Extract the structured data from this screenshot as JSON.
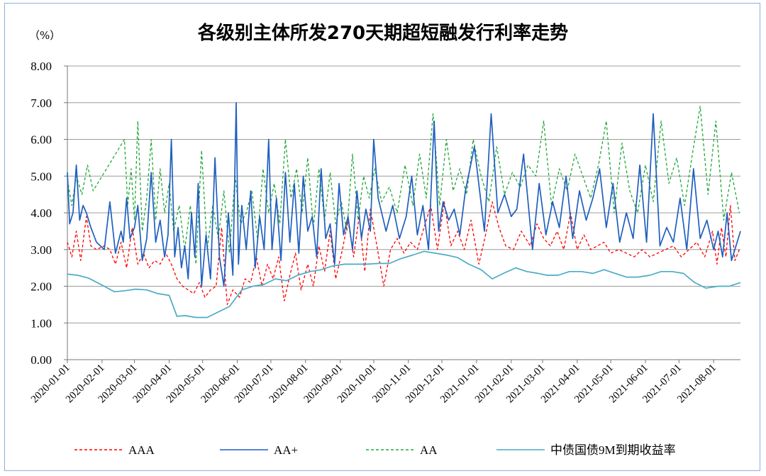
{
  "chart_data": {
    "type": "line",
    "title": "各级别主体所发270天期超短融发行利率走势",
    "unit_label": "（%）",
    "xlabel": "",
    "ylabel": "",
    "ylim": [
      0,
      8
    ],
    "yticks": [
      "0.00",
      "1.00",
      "2.00",
      "3.00",
      "4.00",
      "5.00",
      "6.00",
      "7.00",
      "8.00"
    ],
    "xlim": [
      "2020-01-01",
      "2021-08-25"
    ],
    "xticks": [
      "2020-01-01",
      "2020-02-01",
      "2020-03-01",
      "2020-04-01",
      "2020-05-01",
      "2020-06-01",
      "2020-07-01",
      "2020-08-01",
      "2020-09-01",
      "2020-10-01",
      "2020-11-01",
      "2020-12-01",
      "2021-01-01",
      "2021-02-01",
      "2021-03-01",
      "2021-04-01",
      "2021-05-01",
      "2021-06-01",
      "2021-07-01",
      "2021-08-01"
    ],
    "grid": "horizontal",
    "legend_position": "bottom",
    "series": [
      {
        "name": "AAA",
        "color": "#ff0000",
        "style": "dashed",
        "x": [
          "2020-01-01",
          "2020-01-05",
          "2020-01-09",
          "2020-01-13",
          "2020-01-18",
          "2020-01-22",
          "2020-01-27",
          "2020-02-03",
          "2020-02-08",
          "2020-02-13",
          "2020-02-18",
          "2020-02-23",
          "2020-02-28",
          "2020-03-04",
          "2020-03-09",
          "2020-03-14",
          "2020-03-19",
          "2020-03-24",
          "2020-03-29",
          "2020-04-03",
          "2020-04-08",
          "2020-04-13",
          "2020-04-18",
          "2020-04-23",
          "2020-04-28",
          "2020-05-03",
          "2020-05-08",
          "2020-05-13",
          "2020-05-18",
          "2020-05-23",
          "2020-05-28",
          "2020-06-03",
          "2020-06-08",
          "2020-06-13",
          "2020-06-18",
          "2020-06-23",
          "2020-06-28",
          "2020-07-03",
          "2020-07-08",
          "2020-07-13",
          "2020-07-18",
          "2020-07-23",
          "2020-07-28",
          "2020-08-03",
          "2020-08-08",
          "2020-08-13",
          "2020-08-18",
          "2020-08-23",
          "2020-08-28",
          "2020-09-03",
          "2020-09-08",
          "2020-09-13",
          "2020-09-18",
          "2020-09-23",
          "2020-09-28",
          "2020-10-05",
          "2020-10-10",
          "2020-10-16",
          "2020-10-22",
          "2020-10-28",
          "2020-11-03",
          "2020-11-09",
          "2020-11-15",
          "2020-11-21",
          "2020-11-27",
          "2020-12-03",
          "2020-12-09",
          "2020-12-15",
          "2020-12-21",
          "2020-12-27",
          "2021-01-03",
          "2021-01-09",
          "2021-01-15",
          "2021-01-21",
          "2021-01-27",
          "2021-02-03",
          "2021-02-10",
          "2021-02-18",
          "2021-02-24",
          "2021-03-02",
          "2021-03-08",
          "2021-03-14",
          "2021-03-20",
          "2021-03-26",
          "2021-04-01",
          "2021-04-07",
          "2021-04-13",
          "2021-04-19",
          "2021-04-25",
          "2021-05-01",
          "2021-05-08",
          "2021-05-15",
          "2021-05-22",
          "2021-05-29",
          "2021-06-05",
          "2021-06-12",
          "2021-06-19",
          "2021-06-26",
          "2021-07-03",
          "2021-07-10",
          "2021-07-17",
          "2021-07-24",
          "2021-07-31",
          "2021-08-04",
          "2021-08-08",
          "2021-08-12",
          "2021-08-16",
          "2021-08-20",
          "2021-08-24"
        ],
        "values": [
          3.2,
          2.8,
          3.5,
          2.7,
          3.9,
          3.1,
          3.0,
          3.1,
          3.0,
          2.6,
          3.2,
          2.5,
          3.6,
          2.6,
          2.9,
          2.5,
          2.7,
          2.6,
          2.9,
          2.6,
          2.2,
          2.0,
          1.9,
          1.8,
          2.1,
          1.7,
          1.9,
          2.0,
          3.6,
          1.5,
          1.9,
          1.7,
          2.2,
          2.1,
          2.8,
          2.0,
          2.6,
          2.2,
          2.8,
          1.6,
          2.3,
          2.9,
          1.9,
          2.6,
          2.0,
          3.1,
          2.4,
          3.5,
          2.2,
          3.0,
          3.8,
          2.8,
          3.9,
          2.4,
          4.1,
          2.9,
          2.0,
          3.0,
          3.3,
          2.9,
          3.2,
          3.0,
          3.6,
          4.2,
          3.0,
          4.3,
          3.1,
          3.5,
          3.0,
          3.8,
          2.6,
          3.4,
          4.3,
          3.6,
          3.1,
          3.0,
          3.5,
          3.1,
          3.7,
          3.3,
          3.1,
          3.5,
          3.0,
          4.0,
          3.0,
          3.4,
          3.0,
          3.1,
          3.2,
          2.9,
          3.0,
          2.9,
          2.8,
          3.0,
          2.8,
          2.9,
          3.0,
          3.1,
          2.8,
          3.0,
          3.2,
          2.8,
          3.5,
          2.6,
          3.6,
          2.8,
          4.2,
          2.7,
          3.0
        ]
      },
      {
        "name": "AA+",
        "color": "#1f5fbf",
        "style": "solid",
        "x": [
          "2020-01-01",
          "2020-01-03",
          "2020-01-06",
          "2020-01-09",
          "2020-01-12",
          "2020-01-15",
          "2020-01-18",
          "2020-01-22",
          "2020-01-27",
          "2020-02-03",
          "2020-02-08",
          "2020-02-13",
          "2020-02-18",
          "2020-02-20",
          "2020-02-23",
          "2020-02-26",
          "2020-03-01",
          "2020-03-04",
          "2020-03-08",
          "2020-03-12",
          "2020-03-16",
          "2020-03-20",
          "2020-03-24",
          "2020-03-28",
          "2020-03-31",
          "2020-04-03",
          "2020-04-06",
          "2020-04-09",
          "2020-04-12",
          "2020-04-15",
          "2020-04-18",
          "2020-04-21",
          "2020-04-24",
          "2020-04-27",
          "2020-04-30",
          "2020-05-04",
          "2020-05-08",
          "2020-05-12",
          "2020-05-16",
          "2020-05-20",
          "2020-05-24",
          "2020-05-28",
          "2020-05-31",
          "2020-06-02",
          "2020-06-05",
          "2020-06-09",
          "2020-06-13",
          "2020-06-17",
          "2020-06-21",
          "2020-06-25",
          "2020-06-29",
          "2020-07-02",
          "2020-07-06",
          "2020-07-10",
          "2020-07-14",
          "2020-07-18",
          "2020-07-22",
          "2020-07-26",
          "2020-07-30",
          "2020-08-03",
          "2020-08-07",
          "2020-08-11",
          "2020-08-15",
          "2020-08-19",
          "2020-08-23",
          "2020-08-27",
          "2020-08-31",
          "2020-09-04",
          "2020-09-08",
          "2020-09-12",
          "2020-09-16",
          "2020-09-20",
          "2020-09-24",
          "2020-09-28",
          "2020-10-01",
          "2020-10-05",
          "2020-10-12",
          "2020-10-18",
          "2020-10-24",
          "2020-10-30",
          "2020-11-04",
          "2020-11-09",
          "2020-11-14",
          "2020-11-19",
          "2020-11-24",
          "2020-11-28",
          "2020-12-02",
          "2020-12-07",
          "2020-12-12",
          "2020-12-17",
          "2020-12-22",
          "2020-12-30",
          "2021-01-08",
          "2021-01-14",
          "2021-01-20",
          "2021-01-26",
          "2021-02-01",
          "2021-02-06",
          "2021-02-12",
          "2021-02-20",
          "2021-02-26",
          "2021-03-04",
          "2021-03-10",
          "2021-03-16",
          "2021-03-22",
          "2021-03-28",
          "2021-04-03",
          "2021-04-09",
          "2021-04-15",
          "2021-04-21",
          "2021-04-27",
          "2021-05-03",
          "2021-05-09",
          "2021-05-15",
          "2021-05-21",
          "2021-05-27",
          "2021-06-02",
          "2021-06-08",
          "2021-06-14",
          "2021-06-20",
          "2021-06-26",
          "2021-07-02",
          "2021-07-08",
          "2021-07-14",
          "2021-07-20",
          "2021-07-26",
          "2021-08-01",
          "2021-08-05",
          "2021-08-09",
          "2021-08-13",
          "2021-08-17",
          "2021-08-21",
          "2021-08-25"
        ],
        "values": [
          5.1,
          3.7,
          4.0,
          5.3,
          3.8,
          4.2,
          4.0,
          3.6,
          3.2,
          3.0,
          4.3,
          2.9,
          3.5,
          3.2,
          4.4,
          3.3,
          3.6,
          4.2,
          2.7,
          3.3,
          5.1,
          3.2,
          3.8,
          2.8,
          3.4,
          6.0,
          2.8,
          3.6,
          2.5,
          3.1,
          2.2,
          4.0,
          2.8,
          4.8,
          2.0,
          3.4,
          2.2,
          5.5,
          2.8,
          2.0,
          4.0,
          2.3,
          7.0,
          2.6,
          4.2,
          3.0,
          4.6,
          2.5,
          3.9,
          3.0,
          6.0,
          3.0,
          4.4,
          2.7,
          5.1,
          3.2,
          4.8,
          2.9,
          5.0,
          3.5,
          3.9,
          2.8,
          5.2,
          3.3,
          3.7,
          2.6,
          4.8,
          3.4,
          3.9,
          3.0,
          4.6,
          3.3,
          4.1,
          3.5,
          6.0,
          4.4,
          3.5,
          4.2,
          3.3,
          3.9,
          5.0,
          3.4,
          4.2,
          3.0,
          6.5,
          3.5,
          4.3,
          3.8,
          4.1,
          3.4,
          4.6,
          5.8,
          3.5,
          6.7,
          4.0,
          4.5,
          3.9,
          4.1,
          5.6,
          3.0,
          4.8,
          3.4,
          4.3,
          3.6,
          5.0,
          3.3,
          4.6,
          3.8,
          4.4,
          5.2,
          3.6,
          4.8,
          3.2,
          4.0,
          3.3,
          5.3,
          3.2,
          6.7,
          3.1,
          3.6,
          3.2,
          4.4,
          3.0,
          5.2,
          3.3,
          3.8,
          3.0,
          3.5,
          2.8,
          4.0,
          2.7,
          3.1,
          3.5
        ]
      },
      {
        "name": "AA",
        "color": "#22a83a",
        "style": "dashed",
        "x": [
          "2020-01-01",
          "2020-01-05",
          "2020-01-09",
          "2020-01-14",
          "2020-01-19",
          "2020-01-24",
          "2020-02-21",
          "2020-02-24",
          "2020-02-27",
          "2020-03-01",
          "2020-03-04",
          "2020-03-08",
          "2020-03-12",
          "2020-03-16",
          "2020-03-20",
          "2020-03-24",
          "2020-03-28",
          "2020-04-01",
          "2020-04-05",
          "2020-04-10",
          "2020-04-15",
          "2020-04-20",
          "2020-04-25",
          "2020-04-30",
          "2020-05-05",
          "2020-05-10",
          "2020-05-15",
          "2020-05-20",
          "2020-05-25",
          "2020-05-30",
          "2020-06-04",
          "2020-06-09",
          "2020-06-14",
          "2020-06-19",
          "2020-06-24",
          "2020-06-29",
          "2020-07-04",
          "2020-07-09",
          "2020-07-14",
          "2020-07-19",
          "2020-07-24",
          "2020-07-29",
          "2020-08-03",
          "2020-08-08",
          "2020-08-13",
          "2020-08-18",
          "2020-08-23",
          "2020-08-28",
          "2020-09-02",
          "2020-09-07",
          "2020-09-12",
          "2020-09-17",
          "2020-09-22",
          "2020-09-27",
          "2020-10-02",
          "2020-10-08",
          "2020-10-15",
          "2020-10-22",
          "2020-10-29",
          "2020-11-05",
          "2020-11-11",
          "2020-11-17",
          "2020-11-23",
          "2020-11-29",
          "2020-12-05",
          "2020-12-11",
          "2020-12-17",
          "2020-12-23",
          "2020-12-29",
          "2021-01-05",
          "2021-01-12",
          "2021-01-19",
          "2021-01-26",
          "2021-02-02",
          "2021-02-09",
          "2021-02-16",
          "2021-02-23",
          "2021-03-02",
          "2021-03-09",
          "2021-03-16",
          "2021-03-23",
          "2021-03-30",
          "2021-04-06",
          "2021-04-13",
          "2021-04-20",
          "2021-04-27",
          "2021-05-04",
          "2021-05-11",
          "2021-05-18",
          "2021-05-25",
          "2021-06-01",
          "2021-06-08",
          "2021-06-15",
          "2021-06-22",
          "2021-06-29",
          "2021-07-06",
          "2021-07-13",
          "2021-07-20",
          "2021-07-27",
          "2021-08-03",
          "2021-08-10",
          "2021-08-17",
          "2021-08-24"
        ],
        "values": [
          4.9,
          4.2,
          5.0,
          4.5,
          5.3,
          4.6,
          6.0,
          4.2,
          5.2,
          3.8,
          6.5,
          3.5,
          4.4,
          6.0,
          3.8,
          5.2,
          4.0,
          4.8,
          3.5,
          4.2,
          3.0,
          4.2,
          2.6,
          5.7,
          3.0,
          4.2,
          3.3,
          4.6,
          2.9,
          5.0,
          3.7,
          4.0,
          4.6,
          3.3,
          5.2,
          4.0,
          4.8,
          3.7,
          6.0,
          4.4,
          5.2,
          4.0,
          5.5,
          3.6,
          5.2,
          3.8,
          5.1,
          3.7,
          4.3,
          3.5,
          5.6,
          3.8,
          5.0,
          4.4,
          5.2,
          4.3,
          4.7,
          4.0,
          5.3,
          4.2,
          5.6,
          4.4,
          6.7,
          4.2,
          6.0,
          4.6,
          5.2,
          4.5,
          6.0,
          5.0,
          4.3,
          5.8,
          4.5,
          5.1,
          4.7,
          5.3,
          5.0,
          6.5,
          4.2,
          5.2,
          4.6,
          5.6,
          5.0,
          4.4,
          5.3,
          6.5,
          4.0,
          5.9,
          4.6,
          4.0,
          5.3,
          4.3,
          6.5,
          4.8,
          5.5,
          4.2,
          5.6,
          6.9,
          4.5,
          6.5,
          3.8,
          5.1,
          4.0
        ]
      },
      {
        "name": "中债国债9M到期收益率",
        "color": "#4bacc6",
        "style": "solid",
        "x": [
          "2020-01-01",
          "2020-01-10",
          "2020-01-20",
          "2020-02-03",
          "2020-02-12",
          "2020-02-22",
          "2020-03-02",
          "2020-03-12",
          "2020-03-22",
          "2020-04-01",
          "2020-04-08",
          "2020-04-15",
          "2020-04-25",
          "2020-05-05",
          "2020-05-15",
          "2020-05-25",
          "2020-06-05",
          "2020-06-15",
          "2020-06-25",
          "2020-07-05",
          "2020-07-15",
          "2020-07-25",
          "2020-08-05",
          "2020-08-15",
          "2020-08-25",
          "2020-09-05",
          "2020-09-15",
          "2020-09-25",
          "2020-10-05",
          "2020-10-15",
          "2020-10-25",
          "2020-11-05",
          "2020-11-15",
          "2020-11-25",
          "2020-12-05",
          "2020-12-15",
          "2020-12-25",
          "2021-01-05",
          "2021-01-15",
          "2021-01-25",
          "2021-02-05",
          "2021-02-15",
          "2021-02-25",
          "2021-03-05",
          "2021-03-15",
          "2021-03-25",
          "2021-04-05",
          "2021-04-15",
          "2021-04-25",
          "2021-05-05",
          "2021-05-15",
          "2021-05-25",
          "2021-06-05",
          "2021-06-15",
          "2021-06-25",
          "2021-07-05",
          "2021-07-15",
          "2021-07-25",
          "2021-08-05",
          "2021-08-15",
          "2021-08-25"
        ],
        "values": [
          2.33,
          2.3,
          2.22,
          2.0,
          1.85,
          1.88,
          1.92,
          1.9,
          1.8,
          1.75,
          1.18,
          1.2,
          1.15,
          1.15,
          1.3,
          1.45,
          1.9,
          2.0,
          2.05,
          2.2,
          2.15,
          2.3,
          2.4,
          2.45,
          2.55,
          2.6,
          2.6,
          2.6,
          2.62,
          2.62,
          2.75,
          2.85,
          2.95,
          2.9,
          2.85,
          2.78,
          2.6,
          2.45,
          2.2,
          2.35,
          2.5,
          2.4,
          2.35,
          2.3,
          2.3,
          2.4,
          2.4,
          2.35,
          2.45,
          2.35,
          2.25,
          2.25,
          2.3,
          2.4,
          2.4,
          2.35,
          2.1,
          1.95,
          2.0,
          2.0,
          2.1
        ]
      }
    ]
  }
}
